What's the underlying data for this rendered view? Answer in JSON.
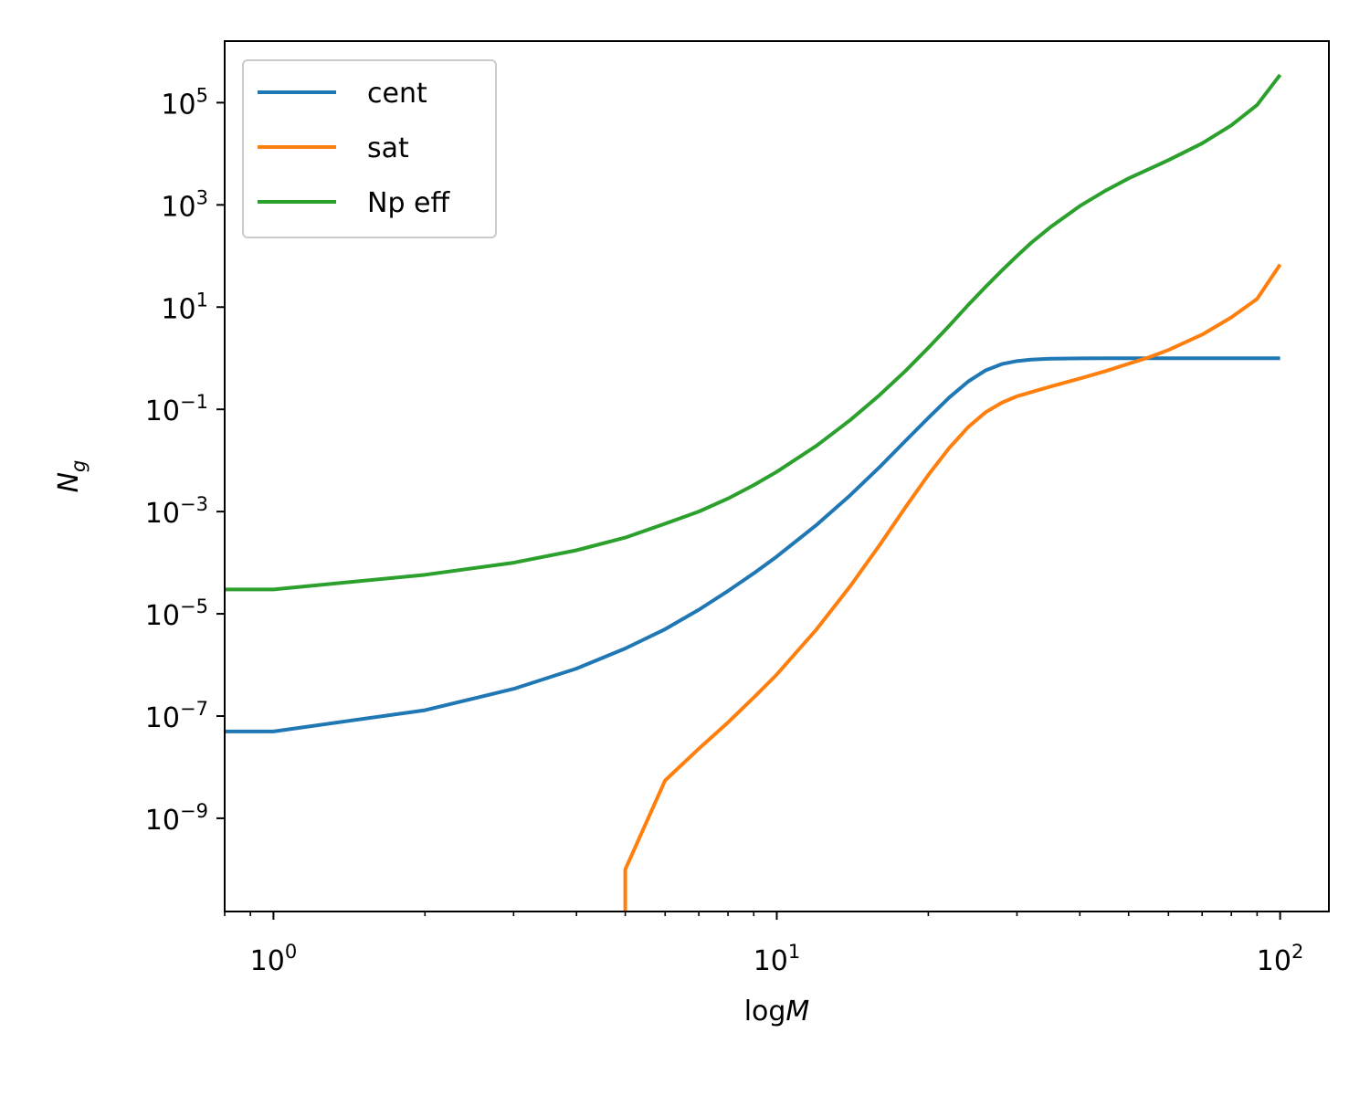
{
  "chart_data": {
    "type": "line",
    "title": "",
    "xlabel": {
      "prefix": "log",
      "var": "M"
    },
    "ylabel": {
      "base": "N",
      "sub": "g"
    },
    "xscale": "log",
    "yscale": "log",
    "xlim": [
      0.8,
      125
    ],
    "ylim": [
      1.5e-11,
      1600000.0
    ],
    "grid": false,
    "legend": "top-left",
    "xticks": [
      {
        "value": 1,
        "base": "10",
        "exp": "0"
      },
      {
        "value": 10,
        "base": "10",
        "exp": "1"
      },
      {
        "value": 100,
        "base": "10",
        "exp": "2"
      }
    ],
    "yticks": [
      {
        "value": 100000.0,
        "base": "10",
        "exp": "5"
      },
      {
        "value": 1000.0,
        "base": "10",
        "exp": "3"
      },
      {
        "value": 10.0,
        "base": "10",
        "exp": "1"
      },
      {
        "value": 0.1,
        "base": "10",
        "exp": "−1"
      },
      {
        "value": 0.001,
        "base": "10",
        "exp": "−3"
      },
      {
        "value": 1e-05,
        "base": "10",
        "exp": "−5"
      },
      {
        "value": 1e-07,
        "base": "10",
        "exp": "−7"
      },
      {
        "value": 1e-09,
        "base": "10",
        "exp": "−9"
      }
    ],
    "series": [
      {
        "name": "cent",
        "color": "#1f77b4",
        "x": [
          0,
          1,
          2,
          3,
          4,
          5,
          6,
          7,
          8,
          9,
          10,
          12,
          14,
          16,
          18,
          20,
          22,
          24,
          26,
          28,
          30,
          32,
          35,
          40,
          45,
          50,
          60,
          70,
          80,
          90,
          100
        ],
        "y": [
          5e-08,
          5e-08,
          1.3e-07,
          3.4e-07,
          8.5e-07,
          2.1e-06,
          5e-06,
          1.2e-05,
          2.8e-05,
          6.2e-05,
          0.000132,
          0.00055,
          0.0021,
          0.0074,
          0.024,
          0.068,
          0.17,
          0.35,
          0.58,
          0.77,
          0.88,
          0.94,
          0.98,
          0.995,
          1.0,
          1.0,
          1.0,
          1.0,
          1.0,
          1.0,
          1.0
        ]
      },
      {
        "name": "sat",
        "color": "#ff7f0e",
        "x": [
          5,
          5,
          6,
          7,
          8,
          9,
          10,
          12,
          14,
          16,
          18,
          20,
          22,
          24,
          26,
          28,
          30,
          35,
          40,
          45,
          50,
          55,
          60,
          70,
          80,
          90,
          100
        ],
        "y": [
          1.5e-11,
          1e-10,
          5.5e-09,
          2.3e-08,
          7.5e-08,
          2.3e-07,
          6.5e-07,
          5e-06,
          3.5e-05,
          0.00022,
          0.0012,
          0.0052,
          0.0175,
          0.045,
          0.088,
          0.135,
          0.18,
          0.28,
          0.4,
          0.56,
          0.78,
          1.05,
          1.45,
          2.9,
          6.3,
          14.5,
          68
        ]
      },
      {
        "name": "Np eff",
        "color": "#2ca02c",
        "x": [
          0,
          1,
          2,
          3,
          4,
          5,
          6,
          7,
          8,
          9,
          10,
          12,
          14,
          16,
          18,
          20,
          22,
          24,
          26,
          28,
          30,
          32,
          35,
          40,
          45,
          50,
          60,
          70,
          80,
          90,
          100
        ],
        "y": [
          3e-05,
          3e-05,
          5.8e-05,
          0.0001,
          0.000175,
          0.00031,
          0.00058,
          0.001,
          0.0018,
          0.0033,
          0.006,
          0.0195,
          0.062,
          0.19,
          0.56,
          1.6,
          4.3,
          11,
          25,
          52,
          100,
          180,
          370,
          950,
          1900,
          3300,
          7500,
          16000,
          36000,
          90000,
          350000
        ]
      }
    ]
  }
}
